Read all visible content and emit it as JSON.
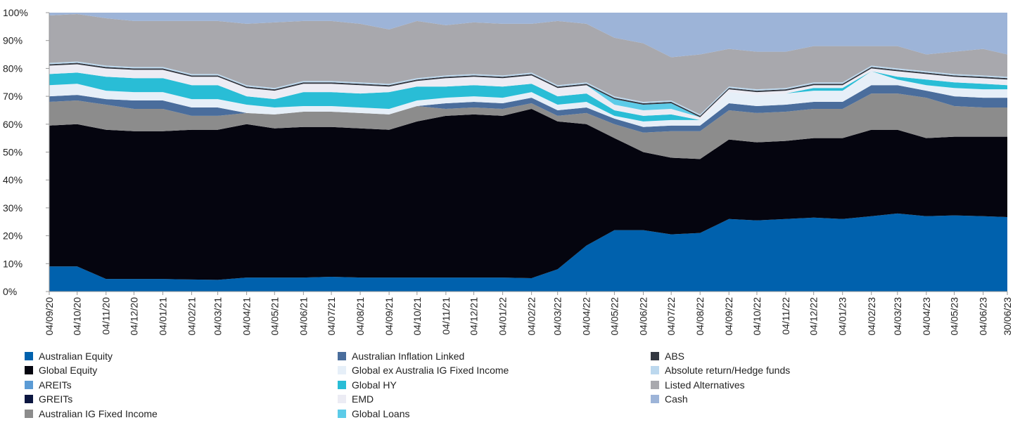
{
  "chart_data": {
    "type": "stacked_area",
    "categories": [
      "04/09/20",
      "04/10/20",
      "04/11/20",
      "04/12/20",
      "04/01/21",
      "04/02/21",
      "04/03/21",
      "04/04/21",
      "04/05/21",
      "04/06/21",
      "04/07/21",
      "04/08/21",
      "04/09/21",
      "04/10/21",
      "04/11/21",
      "04/12/21",
      "04/01/22",
      "04/02/22",
      "04/03/22",
      "04/04/22",
      "04/05/22",
      "04/06/22",
      "04/07/22",
      "04/08/22",
      "04/09/22",
      "04/10/22",
      "04/11/22",
      "04/12/22",
      "04/01/23",
      "04/02/23",
      "04/03/23",
      "04/04/23",
      "04/05/23",
      "04/06/23",
      "30/06/23"
    ],
    "ylim": [
      0,
      100
    ],
    "yticks": [
      {
        "value": 0,
        "label": "0%"
      },
      {
        "value": 10,
        "label": "10%"
      },
      {
        "value": 20,
        "label": "20%"
      },
      {
        "value": 30,
        "label": "30%"
      },
      {
        "value": 40,
        "label": "40%"
      },
      {
        "value": 50,
        "label": "50%"
      },
      {
        "value": 60,
        "label": "60%"
      },
      {
        "value": 70,
        "label": "70%"
      },
      {
        "value": 80,
        "label": "80%"
      },
      {
        "value": 90,
        "label": "90%"
      },
      {
        "value": 100,
        "label": "100%"
      }
    ],
    "series": [
      {
        "name": "Australian Equity",
        "color": "#0061ad",
        "values": [
          9,
          9,
          4.5,
          4.5,
          4.5,
          4.3,
          4.2,
          5,
          5,
          5,
          5.3,
          5,
          5,
          5,
          5,
          5,
          5,
          4.8,
          8,
          16.5,
          22,
          22,
          20.5,
          21,
          26,
          25.5,
          26,
          26.5,
          26,
          27,
          28,
          27,
          27.3,
          27,
          26.7
        ]
      },
      {
        "name": "Global Equity",
        "color": "#05050f",
        "values": [
          50.5,
          51,
          53.5,
          53,
          53,
          53.7,
          53.8,
          55,
          53.5,
          54,
          53.7,
          53.5,
          53,
          56,
          58,
          58.5,
          58,
          60.7,
          53,
          43.5,
          33,
          28,
          27.5,
          26.5,
          28.5,
          28,
          28,
          28.5,
          29,
          31,
          30,
          28,
          28.2,
          28.5,
          28.8
        ]
      },
      {
        "name": "AREITs",
        "color": "#5b9bd5",
        "values": [
          0,
          0,
          0,
          0,
          0,
          0,
          0,
          0,
          0,
          0,
          0,
          0,
          0,
          0,
          0,
          0,
          0,
          0,
          0,
          0,
          0,
          0,
          0,
          0,
          0,
          0,
          0,
          0,
          0,
          0,
          0,
          0,
          0,
          0,
          0
        ]
      },
      {
        "name": "GREITs",
        "color": "#0b1640",
        "values": [
          0,
          0,
          0,
          0,
          0,
          0,
          0,
          0,
          0,
          0,
          0,
          0,
          0,
          0,
          0,
          0,
          0,
          0,
          0,
          0,
          0,
          0,
          0,
          0,
          0,
          0,
          0,
          0,
          0,
          0,
          0,
          0,
          0,
          0,
          0
        ]
      },
      {
        "name": "Australian IG Fixed Income",
        "color": "#8c8c8c",
        "values": [
          8.5,
          8.5,
          9,
          8,
          8,
          5,
          5,
          4,
          5,
          5.5,
          5.5,
          5.5,
          5.5,
          5.5,
          2.5,
          2.5,
          2.5,
          2,
          2,
          4,
          5,
          7,
          9.5,
          10,
          10.5,
          10.5,
          10.5,
          10.5,
          10.5,
          13,
          13,
          14.5,
          11,
          10.5,
          10.5
        ]
      },
      {
        "name": "Australian Inflation Linked",
        "color": "#4a6d9c",
        "values": [
          2,
          2,
          2,
          3,
          3,
          3,
          3,
          0,
          0,
          0,
          0,
          0,
          0,
          0,
          2,
          2,
          2,
          2,
          2,
          2,
          2,
          2,
          2,
          2,
          2.5,
          2.5,
          2.5,
          2.5,
          2.5,
          3,
          3,
          2.5,
          3.5,
          3.5,
          3.5
        ]
      },
      {
        "name": "Global ex Australia IG Fixed Income",
        "color": "#e6eff8",
        "values": [
          4,
          4,
          3,
          3,
          3,
          3,
          3,
          3,
          2.5,
          2,
          2,
          2,
          2,
          2,
          2,
          2,
          2,
          2,
          2,
          2,
          1,
          2,
          2,
          2,
          4,
          4,
          4,
          4,
          4,
          5,
          2,
          2,
          3,
          3,
          3
        ]
      },
      {
        "name": "Global HY",
        "color": "#29bdd6",
        "values": [
          4,
          4,
          5,
          5,
          5,
          5,
          5,
          3,
          3,
          5,
          5,
          5,
          6,
          5,
          4,
          4,
          4,
          3,
          3,
          3,
          2,
          2,
          2,
          0,
          0,
          0,
          0,
          1,
          1,
          0,
          1,
          2,
          2,
          2,
          1.5
        ]
      },
      {
        "name": "EMD",
        "color": "#ececf4",
        "values": [
          3,
          3,
          3,
          3,
          3,
          3,
          3,
          3,
          3,
          3,
          3,
          3,
          2,
          2,
          3,
          3,
          3,
          3,
          3,
          3,
          2,
          2,
          2,
          1,
          1,
          1,
          1,
          1,
          1,
          1,
          2,
          2,
          2,
          2,
          2
        ]
      },
      {
        "name": "Global Loans",
        "color": "#5ccbe8",
        "values": [
          0,
          0,
          0,
          0,
          0,
          0,
          0,
          0,
          0,
          0,
          0,
          0,
          0,
          0,
          0,
          0,
          0,
          0,
          0,
          0,
          2,
          2,
          2,
          0,
          0,
          0,
          0,
          0,
          0,
          0,
          0,
          0,
          0,
          0,
          0
        ]
      },
      {
        "name": "ABS",
        "color": "#333740",
        "values": [
          0.5,
          0.5,
          0.5,
          0.5,
          0.5,
          0.5,
          0.5,
          0.5,
          0.5,
          0.5,
          0.5,
          0.5,
          0.5,
          0.5,
          0.5,
          0.5,
          0.5,
          0.5,
          0.5,
          0.5,
          0.5,
          0.5,
          0.5,
          0.5,
          0.5,
          0.5,
          0.5,
          0.5,
          0.5,
          0.5,
          0.5,
          0.5,
          0.5,
          0.5,
          0.5
        ]
      },
      {
        "name": "Absolute return/Hedge funds",
        "color": "#bcd8ee",
        "values": [
          0.5,
          0.5,
          0.5,
          0.5,
          0.5,
          0.5,
          0.5,
          0.5,
          0.5,
          0.5,
          0.5,
          0.5,
          0.5,
          0.5,
          0.5,
          0.5,
          0.5,
          0.5,
          0.5,
          0.5,
          0.5,
          0.5,
          0.5,
          0.5,
          0.5,
          0.5,
          0.5,
          0.5,
          0.5,
          0.5,
          0.5,
          0.5,
          0.5,
          0.5,
          0.5
        ]
      },
      {
        "name": "Listed Alternatives",
        "color": "#a8a8ad",
        "values": [
          17,
          17,
          17,
          16.5,
          16.5,
          19,
          19,
          22,
          23.5,
          21.5,
          21.5,
          21,
          19.5,
          20.5,
          18,
          18.5,
          18.5,
          17.5,
          23,
          21,
          21,
          21,
          15.5,
          21.5,
          13.5,
          13.5,
          13,
          13,
          13,
          7,
          8,
          6,
          8,
          9.5,
          8
        ]
      },
      {
        "name": "Cash",
        "color": "#9db4d8",
        "values": [
          1,
          0.5,
          2,
          3,
          3,
          3,
          3,
          4,
          3.5,
          3,
          3,
          4,
          6,
          3,
          4.5,
          3.5,
          4,
          4,
          3,
          4,
          9,
          11,
          16,
          15,
          13,
          14,
          14,
          12,
          12,
          12,
          12,
          15,
          14,
          13,
          15
        ]
      }
    ]
  }
}
